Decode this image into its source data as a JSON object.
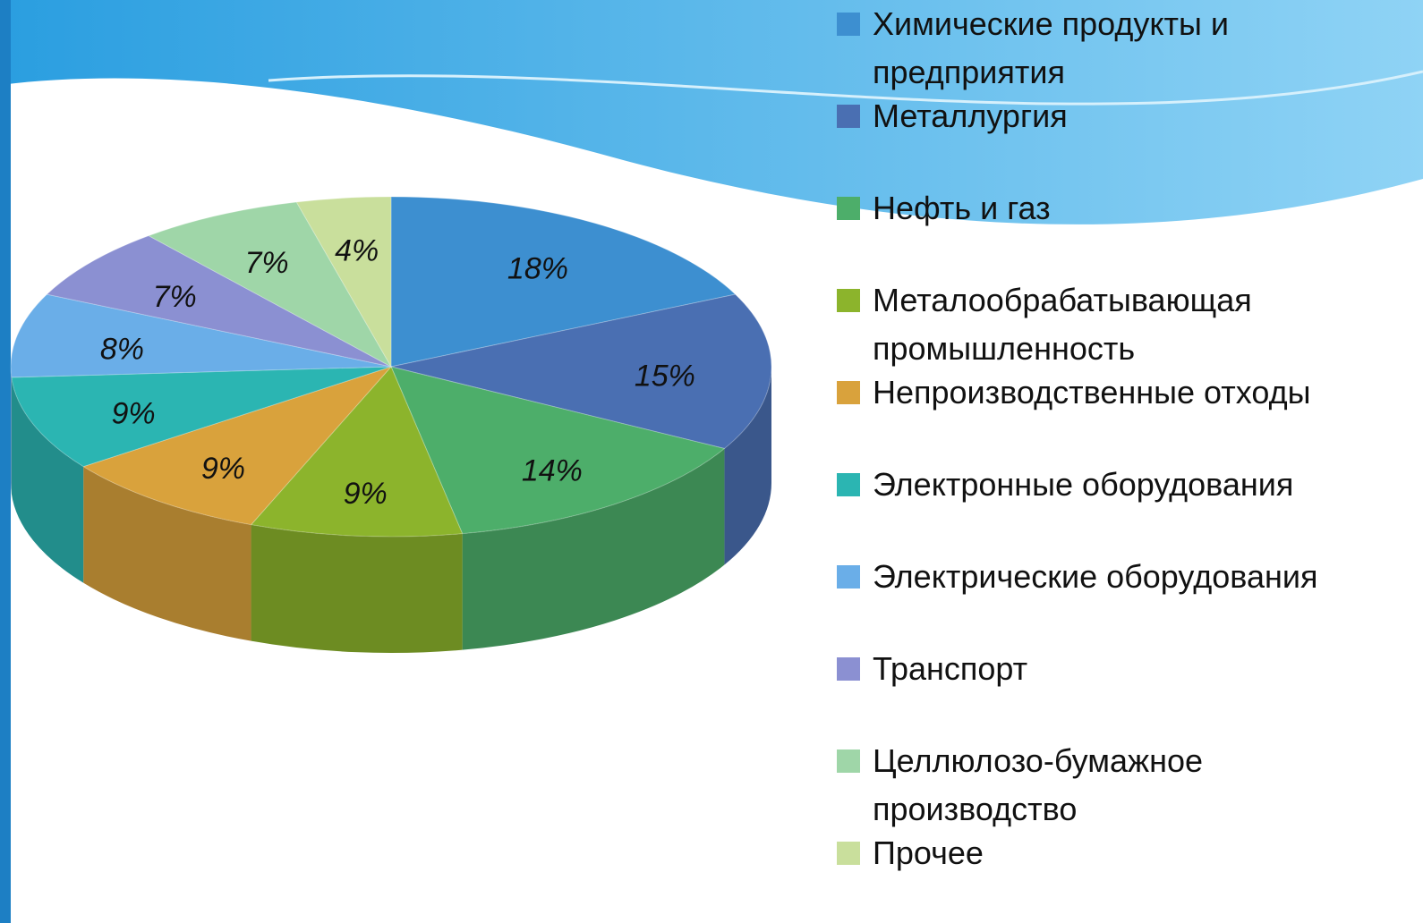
{
  "chart_data": {
    "type": "pie",
    "categories": [
      "Химические продукты и предприятия",
      "Металлургия",
      "Нефть и газ",
      "Металообрабатывающая промышленность",
      "Непроизводственные отходы",
      "Электронные оборудования",
      "Электрические оборудования",
      "Транспорт",
      "Целлюлозо-бумажное производство",
      "Прочее"
    ],
    "values": [
      18,
      15,
      14,
      9,
      9,
      9,
      8,
      7,
      7,
      4
    ],
    "value_labels": [
      "18%",
      "15%",
      "14%",
      "9%",
      "9%",
      "9%",
      "8%",
      "7%",
      "7%",
      "4%"
    ],
    "colors": [
      "#3d8fd0",
      "#4a6fb2",
      "#4dae6a",
      "#8cb42c",
      "#d9a23c",
      "#2bb5b2",
      "#6aaee8",
      "#8b90d2",
      "#9fd6a8",
      "#c9df9c"
    ],
    "legend": "right"
  }
}
